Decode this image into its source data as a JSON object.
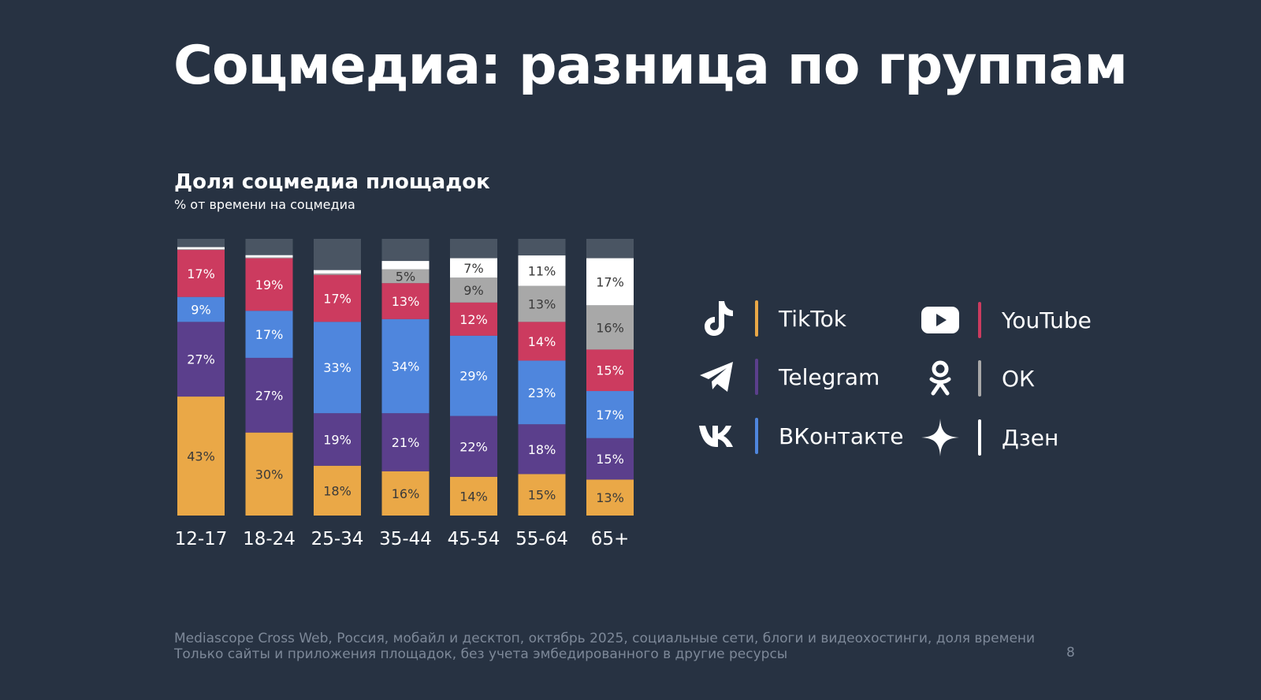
{
  "slide": {
    "title": "Соцмедиа: разница по группам",
    "footer_line1": "Mediascope Cross Web, Россия, мобайл и десктоп, октябрь 2025, социальные сети, блоги и видеохостинги, доля времени",
    "footer_line2": "Только сайты и приложения площадок, без учета эмбедированного в другие ресурсы",
    "page_number": "8"
  },
  "legend": [
    {
      "label": "TikTok",
      "icon": "tiktok-icon",
      "color": "#eaa847"
    },
    {
      "label": "Telegram",
      "icon": "telegram-icon",
      "color": "#5b3f8c"
    },
    {
      "label": "ВКонтакте",
      "icon": "vk-icon",
      "color": "#4f86dd"
    },
    {
      "label": "YouTube",
      "icon": "youtube-icon",
      "color": "#cc3b5f"
    },
    {
      "label": "ОК",
      "icon": "ok-icon",
      "color": "#a8a8a8"
    },
    {
      "label": "Дзен",
      "icon": "dzen-icon",
      "color": "#ffffff"
    }
  ],
  "chart_data": {
    "type": "bar",
    "stacked": true,
    "title": "Доля соцмедиа площадок",
    "subtitle": "% от времени на соцмедиа",
    "categories": [
      "12-17",
      "18-24",
      "25-34",
      "35-44",
      "45-54",
      "55-64",
      "65+"
    ],
    "ylim": [
      0,
      100
    ],
    "series": [
      {
        "name": "TikTok",
        "color": "#eaa847",
        "values": [
          43,
          30,
          18,
          16,
          14,
          15,
          13
        ]
      },
      {
        "name": "Telegram",
        "color": "#5b3f8c",
        "values": [
          27,
          27,
          19,
          21,
          22,
          18,
          15
        ]
      },
      {
        "name": "ВКонтакте",
        "color": "#4f86dd",
        "values": [
          9,
          17,
          33,
          34,
          29,
          23,
          17
        ]
      },
      {
        "name": "YouTube",
        "color": "#cc3b5f",
        "values": [
          17,
          19,
          17,
          13,
          12,
          14,
          15
        ]
      },
      {
        "name": "ОК",
        "color": "#a8a8a8",
        "values": [
          0.3,
          0.3,
          0.5,
          5,
          9,
          13,
          16
        ]
      },
      {
        "name": "Дзен",
        "color": "#ffffff",
        "values": [
          0.7,
          0.8,
          1.2,
          3,
          7,
          11,
          17
        ]
      }
    ],
    "remainder_color": "#4a5563",
    "data_labels": [
      [
        "43%",
        "27%",
        "9%",
        "17%",
        "",
        ""
      ],
      [
        "30%",
        "27%",
        "17%",
        "19%",
        "",
        ""
      ],
      [
        "18%",
        "19%",
        "33%",
        "17%",
        "",
        ""
      ],
      [
        "16%",
        "21%",
        "34%",
        "13%",
        "5%",
        ""
      ],
      [
        "14%",
        "22%",
        "29%",
        "12%",
        "9%",
        "7%"
      ],
      [
        "15%",
        "18%",
        "23%",
        "14%",
        "13%",
        "11%"
      ],
      [
        "13%",
        "15%",
        "17%",
        "15%",
        "16%",
        "17%"
      ]
    ],
    "grid": false
  }
}
